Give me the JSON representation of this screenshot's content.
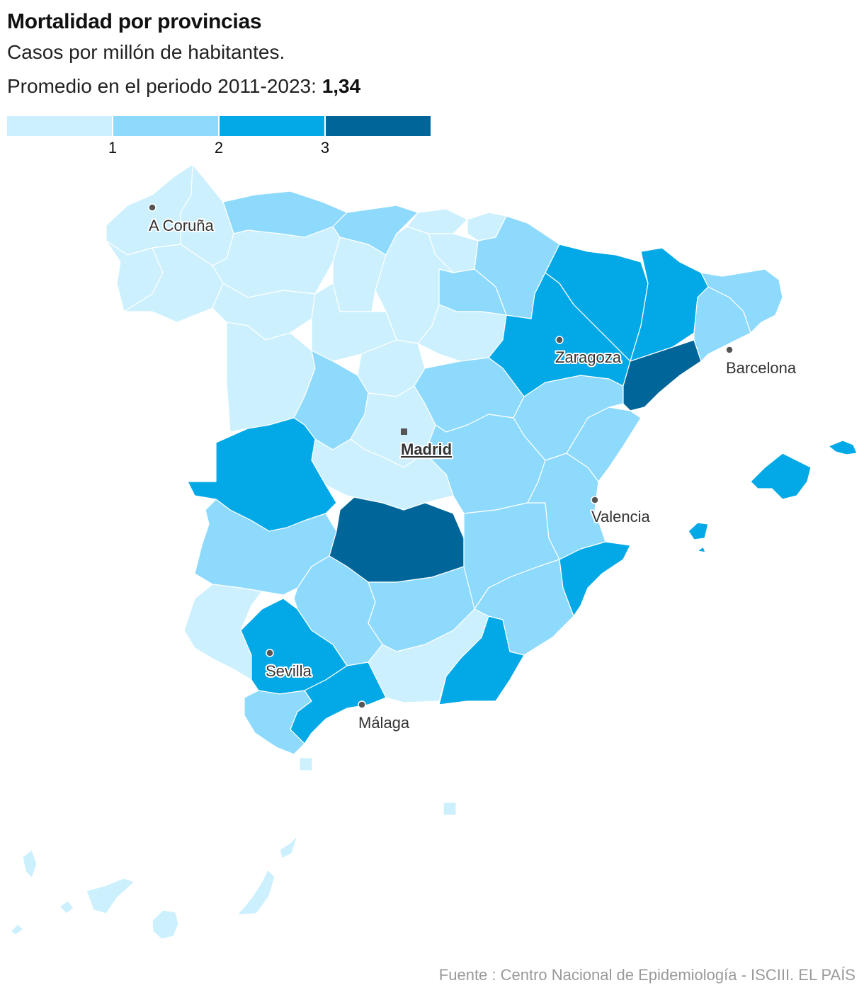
{
  "title": "Mortalidad por provincias",
  "subtitle": "Casos por millón de habitantes.",
  "average": {
    "prefix": "Promedio en el periodo 2011-2023:",
    "value": "1,34"
  },
  "legend": {
    "ticks": [
      "1",
      "2",
      "3"
    ],
    "colors": [
      "#ccf0fd",
      "#8ddafc",
      "#03a9e6",
      "#006699"
    ]
  },
  "colors": {
    "class0": "#ccf0fd",
    "class1": "#8ddafc",
    "class2": "#03a9e6",
    "class3": "#006699",
    "city_dot": "#555555",
    "source_text": "#9a9a9a"
  },
  "cities": {
    "a_coruna": "A Coruña",
    "zaragoza": "Zaragoza",
    "barcelona": "Barcelona",
    "madrid": "Madrid",
    "valencia": "Valencia",
    "sevilla": "Sevilla",
    "malaga": "Málaga"
  },
  "source": "Fuente : Centro Nacional de Epidemiología - ISCIII. EL PAÍS"
}
